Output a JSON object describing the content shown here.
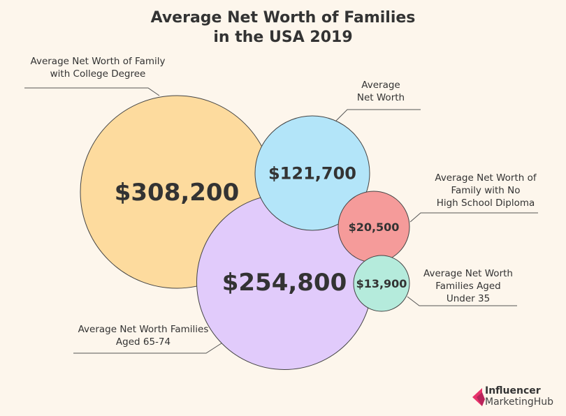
{
  "chart_data": {
    "type": "bubble",
    "title": "Average Net Worth of Families in the USA 2019",
    "title_lines": [
      "Average Net Worth of Families",
      "in the USA 2019"
    ],
    "bubbles": [
      {
        "label_lines": [
          "Average Net Worth of Family",
          "with College Degree"
        ],
        "value": 308200,
        "value_label": "$308,200",
        "color": "#fddb9e"
      },
      {
        "label_lines": [
          "Average Net Worth Families",
          "Aged 65-74"
        ],
        "value": 254800,
        "value_label": "$254,800",
        "color": "#e1cbfb"
      },
      {
        "label_lines": [
          "Average",
          "Net Worth"
        ],
        "value": 121700,
        "value_label": "$121,700",
        "color": "#b3e5f9"
      },
      {
        "label_lines": [
          "Average Net Worth of",
          "Family with No",
          "High School Diploma"
        ],
        "value": 20500,
        "value_label": "$20,500",
        "color": "#f59b9a"
      },
      {
        "label_lines": [
          "Average Net Worth",
          "Families Aged",
          "Under 35"
        ],
        "value": 13900,
        "value_label": "$13,900",
        "color": "#b5ebdc"
      }
    ]
  },
  "logo": {
    "line1": "Influencer",
    "line2": "MarketingHub",
    "color": "#e8336b"
  },
  "background": "#fdf6ec"
}
